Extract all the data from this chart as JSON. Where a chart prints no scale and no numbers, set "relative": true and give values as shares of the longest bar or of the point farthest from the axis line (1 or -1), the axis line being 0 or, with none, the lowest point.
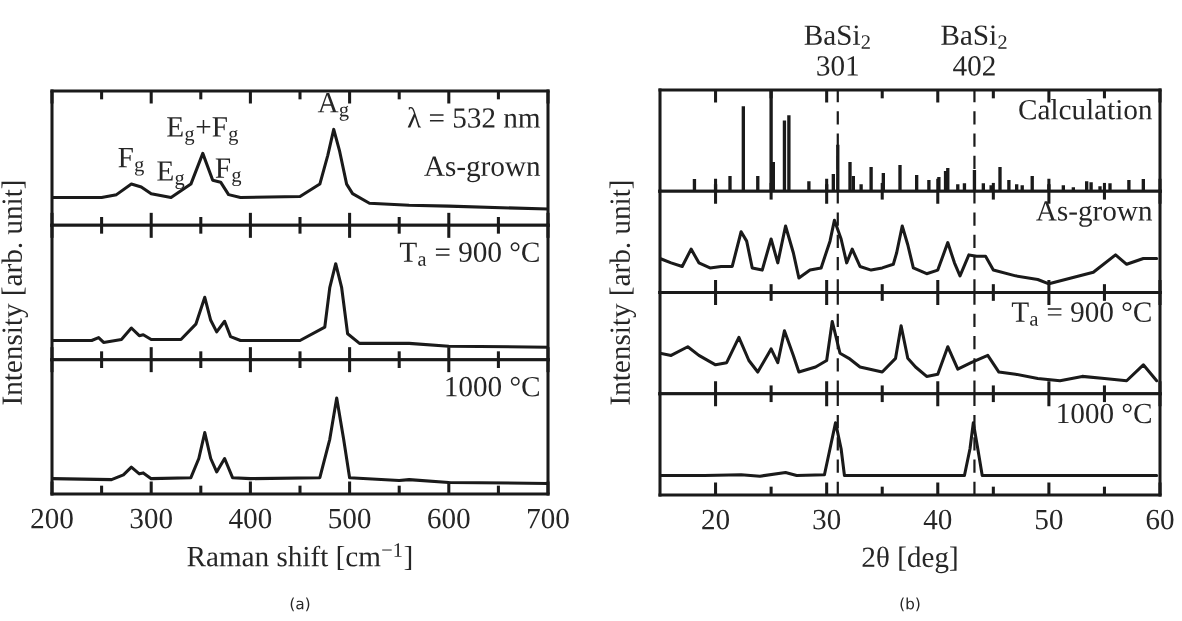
{
  "chart_data": [
    {
      "type": "line",
      "relative": true,
      "xlim": [
        200,
        700
      ],
      "xticks": [
        200,
        {
          "value": 250,
          "label": null
        },
        300,
        {
          "value": 350,
          "label": null
        },
        400,
        {
          "value": 450,
          "label": null
        },
        500,
        {
          "value": 550,
          "label": null
        },
        600,
        {
          "value": 650,
          "label": null
        },
        700
      ],
      "tick_labels": false,
      "x": [
        200,
        250,
        265,
        280,
        290,
        300,
        320,
        340,
        352,
        362,
        370,
        378,
        390,
        450,
        470,
        478,
        484,
        490,
        497,
        503,
        520,
        560,
        600,
        700
      ],
      "series": [
        {
          "color": "#1a1a1a",
          "values": [
            0.29,
            0.29,
            0.32,
            0.43,
            0.4,
            0.33,
            0.29,
            0.43,
            0.75,
            0.47,
            0.45,
            0.32,
            0.29,
            0.3,
            0.43,
            0.73,
            1.0,
            0.77,
            0.43,
            0.33,
            0.23,
            0.21,
            0.2,
            0.17
          ]
        }
      ],
      "annotations": [
        "λ = 532 nm",
        "As-grown",
        {
          "text": "F$_{g}$",
          "x": 280,
          "y": 0.43
        },
        {
          "text": "E$_{g}$",
          "x": 320,
          "y": 0.29
        },
        {
          "text": "E$_{g}$+F$_{g}$",
          "x": 352,
          "y": 0.75
        },
        {
          "text": "F$_{g}$",
          "x": 378,
          "y": 0.32
        },
        {
          "text": "A$_{g}$",
          "x": 484,
          "y": 1.0
        }
      ]
    },
    {
      "type": "line",
      "relative": true,
      "xlim": [
        200,
        700
      ],
      "xticks": [
        200,
        {
          "value": 250,
          "label": null
        },
        300,
        {
          "value": 350,
          "label": null
        },
        400,
        {
          "value": 450,
          "label": null
        },
        500,
        {
          "value": 550,
          "label": null
        },
        600,
        {
          "value": 650,
          "label": null
        },
        700
      ],
      "tick_labels": false,
      "ylabel": "Intensity [arb. unit]",
      "x": [
        200,
        240,
        247,
        252,
        270,
        280,
        288,
        292,
        300,
        330,
        345,
        354,
        360,
        366,
        374,
        380,
        390,
        450,
        475,
        480,
        486,
        492,
        498,
        510,
        560,
        600,
        700
      ],
      "series": [
        {
          "color": "#1a1a1a",
          "values": [
            0.2,
            0.2,
            0.23,
            0.18,
            0.21,
            0.33,
            0.25,
            0.26,
            0.21,
            0.21,
            0.37,
            0.65,
            0.41,
            0.29,
            0.4,
            0.24,
            0.2,
            0.2,
            0.34,
            0.75,
            1.0,
            0.75,
            0.27,
            0.17,
            0.17,
            0.14,
            0.13
          ]
        }
      ],
      "annotations": [
        "T$_{a}$ = 900 °C"
      ]
    },
    {
      "type": "line",
      "relative": true,
      "xlim": [
        200,
        700
      ],
      "xticks": [
        200,
        {
          "value": 250,
          "label": null
        },
        300,
        {
          "value": 350,
          "label": null
        },
        400,
        {
          "value": 450,
          "label": null
        },
        500,
        {
          "value": 550,
          "label": null
        },
        600,
        {
          "value": 650,
          "label": null
        },
        700
      ],
      "tick_labels": "x",
      "xlabel": "Raman shift [cm$^{−1}$]",
      "x": [
        200,
        260,
        272,
        280,
        288,
        292,
        300,
        340,
        348,
        354,
        360,
        366,
        374,
        382,
        400,
        470,
        480,
        487,
        494,
        500,
        550,
        560,
        600,
        700
      ],
      "series": [
        {
          "color": "#1a1a1a",
          "values": [
            0.16,
            0.15,
            0.2,
            0.28,
            0.21,
            0.22,
            0.16,
            0.17,
            0.37,
            0.64,
            0.37,
            0.23,
            0.37,
            0.17,
            0.16,
            0.17,
            0.57,
            1.0,
            0.57,
            0.17,
            0.14,
            0.15,
            0.12,
            0.11
          ]
        }
      ],
      "annotations": [
        "1000 °C",
        "(a)"
      ]
    },
    {
      "type": "bar",
      "relative": true,
      "xlim": [
        15,
        60
      ],
      "xticks": [
        20,
        {
          "value": 25,
          "label": null
        },
        30,
        {
          "value": 35,
          "label": null
        },
        40,
        {
          "value": 45,
          "label": null
        },
        50,
        {
          "value": 55,
          "label": null
        },
        60
      ],
      "tick_labels": false,
      "x": [
        18.1,
        20.0,
        21.3,
        22.5,
        23.8,
        25.0,
        25.2,
        26.2,
        26.6,
        28.4,
        30.0,
        30.6,
        31.0,
        32.1,
        32.4,
        33.1,
        34.0,
        35.1,
        36.6,
        38.1,
        39.2,
        40.1,
        40.7,
        40.9,
        41.8,
        42.4,
        43.3,
        44.1,
        44.8,
        45.6,
        46.4,
        47.1,
        47.6,
        48.5,
        50.0,
        51.3,
        52.2,
        53.4,
        53.8,
        54.6,
        55.5,
        57.2,
        58.5
      ],
      "series": [
        {
          "color": "#1a1a1a",
          "values": [
            0.12,
            0.07,
            0.15,
            0.84,
            0.15,
            1.0,
            0.29,
            0.7,
            0.75,
            0.1,
            0.07,
            0.17,
            0.46,
            0.29,
            0.15,
            0.07,
            0.24,
            0.18,
            0.26,
            0.16,
            0.11,
            0.14,
            0.2,
            0.23,
            0.07,
            0.08,
            0.21,
            0.08,
            0.06,
            0.24,
            0.11,
            0.07,
            0.06,
            0.15,
            0.07,
            0.06,
            0.04,
            0.1,
            0.09,
            0.05,
            0.08,
            0.11,
            0.12
          ]
        }
      ],
      "ref_lines": [
        {
          "axis": "x",
          "value": 31.0,
          "label": "BaSi$_{2}$\n301",
          "color": "#1a1a1a",
          "line_style": "dashed"
        },
        {
          "axis": "x",
          "value": 43.3,
          "label": "BaSi$_{2}$\n402",
          "color": "#1a1a1a",
          "line_style": "dashed"
        }
      ],
      "annotations": [
        "Calculation"
      ]
    },
    {
      "type": "line",
      "relative": true,
      "xlim": [
        15,
        60
      ],
      "xticks": [
        20,
        {
          "value": 25,
          "label": null
        },
        30,
        {
          "value": 35,
          "label": null
        },
        40,
        {
          "value": 45,
          "label": null
        },
        50,
        {
          "value": 55,
          "label": null
        },
        60
      ],
      "tick_labels": false,
      "ylabel": "Intensity [arb. unit]",
      "x": [
        15,
        16,
        17,
        17.8,
        18.5,
        19.5,
        20.5,
        21.5,
        22.3,
        22.8,
        23.3,
        24.2,
        25.0,
        25.6,
        26.3,
        27,
        27.5,
        28.5,
        29.5,
        30.3,
        30.7,
        31.3,
        31.8,
        32.3,
        33,
        34,
        35,
        36,
        36.3,
        36.8,
        37.3,
        37.8,
        39,
        40,
        40.9,
        41.5,
        42,
        42.8,
        43.5,
        44.3,
        45,
        47,
        49,
        50,
        52,
        54,
        56,
        57,
        58.5,
        59.7
      ],
      "series": [
        {
          "color": "#1a1a1a",
          "values": [
            0.47,
            0.41,
            0.36,
            0.6,
            0.41,
            0.34,
            0.36,
            0.36,
            0.84,
            0.71,
            0.34,
            0.31,
            0.74,
            0.41,
            0.92,
            0.55,
            0.2,
            0.31,
            0.34,
            0.71,
            1.0,
            0.74,
            0.41,
            0.6,
            0.36,
            0.31,
            0.34,
            0.39,
            0.55,
            0.92,
            0.66,
            0.34,
            0.26,
            0.31,
            0.69,
            0.41,
            0.23,
            0.52,
            0.5,
            0.5,
            0.31,
            0.23,
            0.18,
            0.12,
            0.2,
            0.28,
            0.52,
            0.39,
            0.47,
            0.47
          ]
        }
      ],
      "ref_lines": [
        {
          "axis": "x",
          "value": 31.0,
          "color": "#1a1a1a",
          "line_style": "dashed"
        },
        {
          "axis": "x",
          "value": 43.3,
          "color": "#1a1a1a",
          "line_style": "dashed"
        }
      ],
      "annotations": [
        "As-grown"
      ]
    },
    {
      "type": "line",
      "relative": true,
      "xlim": [
        15,
        60
      ],
      "xticks": [
        20,
        {
          "value": 25,
          "label": null
        },
        30,
        {
          "value": 35,
          "label": null
        },
        40,
        {
          "value": 45,
          "label": null
        },
        50,
        {
          "value": 55,
          "label": null
        },
        60
      ],
      "tick_labels": false,
      "x": [
        15,
        16,
        17.5,
        18.5,
        20,
        21,
        22.1,
        23,
        23.8,
        25,
        25.6,
        26.2,
        27,
        27.5,
        29,
        30,
        30.5,
        31.2,
        32,
        33,
        35,
        36.2,
        36.7,
        37.3,
        38,
        39,
        40,
        40.9,
        41.8,
        43,
        44.5,
        45.5,
        47,
        49,
        51,
        53,
        55,
        57,
        58.5,
        59.7
      ],
      "series": [
        {
          "color": "#1a1a1a",
          "values": [
            0.56,
            0.53,
            0.65,
            0.53,
            0.4,
            0.43,
            0.78,
            0.46,
            0.3,
            0.62,
            0.43,
            0.87,
            0.53,
            0.3,
            0.37,
            0.46,
            1.0,
            0.56,
            0.49,
            0.37,
            0.3,
            0.49,
            0.94,
            0.49,
            0.37,
            0.24,
            0.27,
            0.65,
            0.34,
            0.43,
            0.53,
            0.3,
            0.27,
            0.21,
            0.18,
            0.24,
            0.21,
            0.18,
            0.4,
            0.18
          ]
        }
      ],
      "ref_lines": [
        {
          "axis": "x",
          "value": 31.0,
          "color": "#1a1a1a",
          "line_style": "dashed"
        },
        {
          "axis": "x",
          "value": 43.3,
          "color": "#1a1a1a",
          "line_style": "dashed"
        }
      ],
      "annotations": [
        "T$_{a}$ = 900 °C"
      ]
    },
    {
      "type": "line",
      "relative": true,
      "xlim": [
        15,
        60
      ],
      "xticks": [
        20,
        {
          "value": 25,
          "label": null
        },
        30,
        {
          "value": 35,
          "label": null
        },
        40,
        {
          "value": 45,
          "label": null
        },
        50,
        {
          "value": 55,
          "label": null
        },
        60
      ],
      "tick_labels": "x",
      "xlabel": "2θ [deg]",
      "x": [
        15,
        19,
        22.3,
        24,
        26.3,
        27.3,
        29.8,
        30.3,
        30.8,
        31.3,
        31.6,
        42.4,
        42.9,
        43.2,
        43.6,
        44,
        59.7
      ],
      "series": [
        {
          "color": "#1a1a1a",
          "values": [
            0.27,
            0.27,
            0.28,
            0.26,
            0.31,
            0.27,
            0.28,
            0.64,
            1.0,
            0.64,
            0.27,
            0.27,
            0.64,
            1.0,
            0.64,
            0.27,
            0.27
          ]
        }
      ],
      "ref_lines": [
        {
          "axis": "x",
          "value": 31.0,
          "color": "#1a1a1a",
          "line_style": "dashed"
        },
        {
          "axis": "x",
          "value": 43.3,
          "color": "#1a1a1a",
          "line_style": "dashed"
        }
      ],
      "annotations": [
        "1000 °C",
        "(b)"
      ]
    }
  ]
}
